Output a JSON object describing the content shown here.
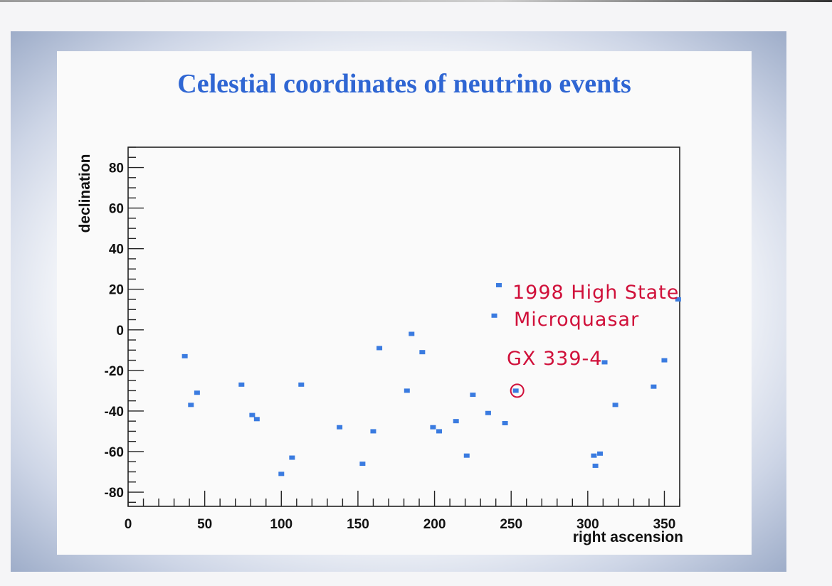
{
  "title": "Celestial coordinates of neutrino events",
  "annotation": {
    "lines": [
      "1998 High State",
      "Microquasar",
      "GX 339-4"
    ],
    "color": "#d0103a",
    "marked_point": [
      253,
      -30
    ]
  },
  "colors": {
    "title": "#2f66d3",
    "points": "#3a7be0"
  },
  "chart_data": {
    "type": "scatter",
    "title": "Celestial coordinates of neutrino events",
    "xlabel": "right ascension",
    "ylabel": "declination",
    "xlim": [
      0,
      360
    ],
    "ylim": [
      -87,
      90
    ],
    "xticks": [
      "0",
      "50",
      "100",
      "150",
      "200",
      "250",
      "300",
      "350"
    ],
    "yticks": [
      "80",
      "60",
      "40",
      "20",
      "0",
      "-20",
      "-40",
      "-60",
      "-80"
    ],
    "grid": false,
    "x": [
      37,
      41,
      45,
      74,
      81,
      84,
      100,
      107,
      113,
      138,
      153,
      160,
      164,
      182,
      185,
      192,
      199,
      203,
      214,
      221,
      225,
      235,
      239,
      242,
      246,
      253,
      304,
      305,
      308,
      311,
      318,
      343,
      350,
      359
    ],
    "y": [
      -13,
      -37,
      -31,
      -27,
      -42,
      -44,
      -71,
      -63,
      -27,
      -48,
      -66,
      -50,
      -9,
      -30,
      -2,
      -11,
      -48,
      -50,
      -45,
      -62,
      -32,
      -41,
      7,
      22,
      -46,
      -30,
      -62,
      -67,
      -61,
      -16,
      -37,
      -28,
      -15,
      15
    ]
  }
}
